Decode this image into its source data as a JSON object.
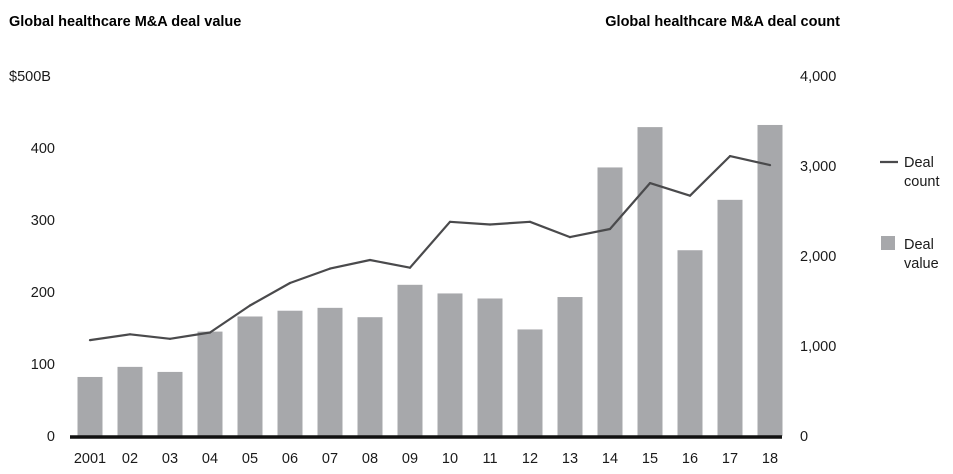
{
  "chart_data": {
    "type": "bar+line",
    "title_left": "Global healthcare M&A deal value",
    "title_right": "Global healthcare M&A deal count",
    "categories": [
      "2001",
      "02",
      "03",
      "04",
      "05",
      "06",
      "07",
      "08",
      "09",
      "10",
      "11",
      "12",
      "13",
      "14",
      "15",
      "16",
      "17",
      "18"
    ],
    "series": [
      {
        "name": "Deal value",
        "type": "bar",
        "axis": "left",
        "values": [
          82,
          96,
          89,
          145,
          166,
          174,
          178,
          165,
          210,
          198,
          191,
          148,
          193,
          373,
          429,
          258,
          328,
          432
        ]
      },
      {
        "name": "Deal count",
        "type": "line",
        "axis": "right",
        "values": [
          1065,
          1130,
          1080,
          1150,
          1450,
          1700,
          1860,
          1955,
          1870,
          2380,
          2350,
          2380,
          2210,
          2300,
          2810,
          2670,
          3110,
          3010
        ]
      }
    ],
    "y_left": {
      "ylim": [
        0,
        500
      ],
      "ticks": [
        0,
        100,
        200,
        300,
        400,
        500
      ],
      "tick_labels": [
        "0",
        "100",
        "200",
        "300",
        "400",
        "$500B"
      ]
    },
    "y_right": {
      "ylim": [
        0,
        4000
      ],
      "ticks": [
        0,
        1000,
        2000,
        3000,
        4000
      ],
      "tick_labels": [
        "0",
        "1,000",
        "2,000",
        "3,000",
        "4,000"
      ]
    },
    "legend": {
      "position": "right",
      "items": [
        {
          "label_lines": [
            "Deal",
            "count"
          ],
          "marker": "line"
        },
        {
          "label_lines": [
            "Deal",
            "value"
          ],
          "marker": "square"
        }
      ]
    },
    "colors": {
      "bar": "#a7a8ab",
      "line": "#4a4a4c",
      "axis": "#111111",
      "text": "#1a1a1a"
    },
    "grid": false
  }
}
